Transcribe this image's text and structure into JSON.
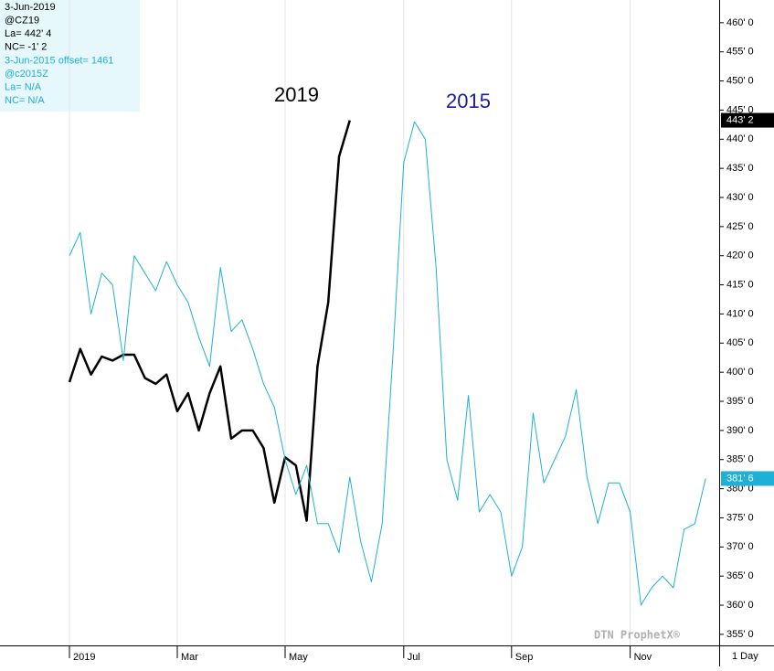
{
  "chart_data": {
    "type": "line",
    "info_panel": [
      {
        "text": "3-Jun-2019",
        "color": "#000000"
      },
      {
        "text": "@CZ19",
        "color": "#000000"
      },
      {
        "text": "La= 442' 4",
        "color": "#000000"
      },
      {
        "text": "NC= -1' 2",
        "color": "#000000"
      },
      {
        "text": "3-Jun-2015 offset= 1461",
        "color": "#1fb0d8"
      },
      {
        "text": "@c2015Z",
        "color": "#1fb0d8"
      },
      {
        "text": "La= N/A",
        "color": "#1fb0d8"
      },
      {
        "text": "NC= N/A",
        "color": "#1fb0d8"
      }
    ],
    "watermark": "DTN ProphetX®",
    "interval": "1 Day",
    "categories": [
      "2019",
      null,
      null,
      null,
      null,
      null,
      null,
      null,
      null,
      null,
      "Mar",
      null,
      null,
      null,
      null,
      null,
      null,
      null,
      null,
      null,
      "May",
      null,
      null,
      null,
      null,
      null,
      null,
      null,
      null,
      null,
      null,
      "Jul",
      null,
      null,
      null,
      null,
      null,
      null,
      null,
      null,
      null,
      "Sep",
      null,
      null,
      null,
      null,
      null,
      null,
      null,
      null,
      null,
      null,
      "Nov",
      null,
      null,
      null,
      null,
      null,
      null,
      null
    ],
    "series": [
      {
        "name": "2019",
        "color": "#000000",
        "label_color": "#000000",
        "width": 2.5,
        "values": [
          398.3,
          404,
          399.6,
          402.7,
          402,
          403,
          403,
          399,
          398,
          399.6,
          393.3,
          396.4,
          390,
          396.4,
          401,
          388.6,
          390,
          390,
          387,
          377.6,
          385.4,
          384,
          374.5,
          401,
          412,
          437,
          443.25,
          null,
          null,
          null,
          null,
          null,
          null,
          null,
          null,
          null,
          null,
          null,
          null,
          null,
          null,
          null,
          null,
          null,
          null,
          null,
          null,
          null,
          null,
          null,
          null,
          null,
          null,
          null,
          null,
          null,
          null,
          null,
          null,
          null
        ],
        "value_labels": [
          null,
          null,
          null,
          null,
          null,
          null,
          null,
          null,
          null,
          null,
          null,
          null,
          null,
          null,
          null,
          null,
          null,
          null,
          null,
          null,
          null,
          null,
          null,
          null,
          null,
          null,
          "443' 2",
          null,
          null,
          null,
          null,
          null,
          null,
          null,
          null,
          null,
          null,
          null,
          null,
          null,
          null,
          null,
          null,
          null,
          null,
          null,
          null,
          null,
          null,
          null,
          null,
          null,
          null,
          null,
          null,
          null,
          null,
          null,
          null,
          null
        ]
      },
      {
        "name": "2015",
        "color": "#1fb0d8",
        "label_color": "#1c1c9c",
        "width": 1,
        "values": [
          420,
          424,
          410,
          417,
          415,
          402,
          420,
          417,
          414,
          419,
          415,
          412,
          406,
          401,
          418,
          407,
          409,
          404,
          398,
          394,
          385,
          379,
          384,
          374,
          374,
          369,
          382,
          371,
          364,
          374,
          403,
          436,
          443,
          440,
          418,
          385,
          378,
          396,
          376,
          379,
          376,
          365,
          370,
          393,
          381,
          385,
          389,
          397,
          382,
          374,
          381,
          381,
          376,
          360,
          363,
          365,
          363,
          373,
          374,
          381.75
        ],
        "value_labels": [
          null,
          null,
          null,
          null,
          null,
          null,
          null,
          null,
          null,
          null,
          null,
          null,
          null,
          null,
          null,
          null,
          null,
          null,
          null,
          null,
          null,
          null,
          null,
          null,
          null,
          null,
          null,
          null,
          null,
          null,
          null,
          null,
          null,
          null,
          null,
          null,
          null,
          null,
          null,
          null,
          null,
          null,
          null,
          null,
          null,
          null,
          null,
          null,
          null,
          null,
          null,
          null,
          null,
          null,
          null,
          null,
          null,
          null,
          null,
          "381' 6"
        ]
      }
    ],
    "ylim": [
      353.1,
      463.9
    ],
    "yticks": [
      {
        "value": 355,
        "label": "355' 0"
      },
      {
        "value": 360,
        "label": "360' 0"
      },
      {
        "value": 365,
        "label": "365' 0"
      },
      {
        "value": 370,
        "label": "370' 0"
      },
      {
        "value": 375,
        "label": "375' 0"
      },
      {
        "value": 380,
        "label": "380' 0"
      },
      {
        "value": 385,
        "label": "385' 0"
      },
      {
        "value": 390,
        "label": "390' 0"
      },
      {
        "value": 395,
        "label": "395' 0"
      },
      {
        "value": 400,
        "label": "400' 0"
      },
      {
        "value": 405,
        "label": "405' 0"
      },
      {
        "value": 410,
        "label": "410' 0"
      },
      {
        "value": 415,
        "label": "415' 0"
      },
      {
        "value": 420,
        "label": "420' 0"
      },
      {
        "value": 425,
        "label": "425' 0"
      },
      {
        "value": 430,
        "label": "430' 0"
      },
      {
        "value": 435,
        "label": "435' 0"
      },
      {
        "value": 440,
        "label": "440' 0"
      },
      {
        "value": 445,
        "label": "445' 0"
      },
      {
        "value": 450,
        "label": "450' 0"
      },
      {
        "value": 455,
        "label": "455' 0"
      },
      {
        "value": 460,
        "label": "460' 0"
      }
    ],
    "grid": true
  }
}
